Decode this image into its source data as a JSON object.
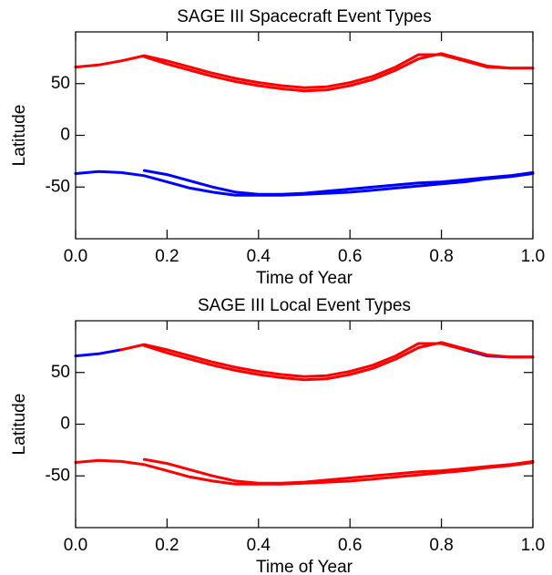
{
  "chart_data": [
    {
      "type": "line",
      "title": "SAGE III Spacecraft Event Types",
      "x_label": "Time of Year",
      "y_label": "Latitude",
      "x": [
        0,
        0.05,
        0.1,
        0.15,
        0.2,
        0.25,
        0.3,
        0.35,
        0.4,
        0.45,
        0.5,
        0.55,
        0.6,
        0.65,
        0.7,
        0.75,
        0.8,
        0.85,
        0.9,
        0.95,
        1.0
      ],
      "xlim": [
        0,
        1
      ],
      "ylim": [
        -100,
        100
      ],
      "xticks": [
        {
          "value": 0,
          "label": "0.0"
        },
        {
          "value": 0.2,
          "label": "0.2"
        },
        {
          "value": 0.4,
          "label": "0.4"
        },
        {
          "value": 0.6,
          "label": "0.6"
        },
        {
          "value": 0.8,
          "label": "0.8"
        },
        {
          "value": 1,
          "label": "1.0"
        }
      ],
      "yticks": [
        -50,
        0,
        50
      ],
      "series": [
        {
          "color": "#ff0000",
          "values": [
            66,
            68,
            72,
            77,
            72,
            66,
            60,
            55,
            51,
            48,
            46,
            47,
            51,
            57,
            66,
            78,
            78,
            72,
            66,
            65,
            65
          ]
        },
        {
          "color": "#ff0000",
          "values": [
            null,
            null,
            null,
            76,
            69,
            63,
            57,
            52,
            48,
            45,
            43,
            44,
            48,
            54,
            63,
            74,
            79,
            73,
            67,
            65,
            65
          ]
        },
        {
          "color": "#0000ff",
          "values": [
            -37,
            -35,
            -36,
            -39,
            -45,
            -51,
            -55,
            -58,
            -58,
            -58,
            -57,
            -56,
            -55,
            -53,
            -51,
            -49,
            -47,
            -45,
            -42,
            -40,
            -37
          ]
        },
        {
          "color": "#0000ff",
          "values": [
            null,
            null,
            null,
            -34,
            -38,
            -44,
            -50,
            -55,
            -57,
            -57,
            -56,
            -54,
            -52,
            -50,
            -48,
            -46,
            -45,
            -43,
            -41,
            -39,
            -36
          ]
        }
      ]
    },
    {
      "type": "line",
      "title": "SAGE III Local Event Types",
      "x_label": "Time of Year",
      "y_label": "Latitude",
      "x": [
        0,
        0.05,
        0.1,
        0.15,
        0.2,
        0.25,
        0.3,
        0.35,
        0.4,
        0.45,
        0.5,
        0.55,
        0.6,
        0.65,
        0.7,
        0.75,
        0.8,
        0.85,
        0.9,
        0.95,
        1.0
      ],
      "xlim": [
        0,
        1
      ],
      "ylim": [
        -100,
        100
      ],
      "xticks": [
        {
          "value": 0,
          "label": "0.0"
        },
        {
          "value": 0.2,
          "label": "0.2"
        },
        {
          "value": 0.4,
          "label": "0.4"
        },
        {
          "value": 0.6,
          "label": "0.6"
        },
        {
          "value": 0.8,
          "label": "0.8"
        },
        {
          "value": 1,
          "label": "1.0"
        }
      ],
      "yticks": [
        -50,
        0,
        50
      ],
      "series": [
        {
          "color": "#0000ff",
          "values": [
            66,
            68,
            72,
            null,
            null,
            null,
            null,
            null,
            null,
            null,
            null,
            null,
            null,
            null,
            null,
            null,
            null,
            72,
            66,
            65,
            65
          ]
        },
        {
          "color": "#ff0000",
          "values": [
            null,
            null,
            72,
            77,
            72,
            66,
            60,
            55,
            51,
            48,
            46,
            47,
            51,
            57,
            66,
            78,
            78,
            72,
            null,
            null,
            null
          ]
        },
        {
          "color": "#ff0000",
          "values": [
            null,
            null,
            null,
            76,
            69,
            63,
            57,
            52,
            48,
            45,
            43,
            44,
            48,
            54,
            63,
            74,
            79,
            73,
            67,
            65,
            65
          ]
        },
        {
          "color": "#ff0000",
          "values": [
            -37,
            -35,
            -36,
            -39,
            -45,
            -51,
            -55,
            -58,
            -58,
            -58,
            -57,
            -56,
            -55,
            -53,
            -51,
            -49,
            -47,
            -45,
            -42,
            -40,
            -37
          ]
        },
        {
          "color": "#ff0000",
          "values": [
            null,
            null,
            null,
            -34,
            -38,
            -44,
            -50,
            -55,
            -57,
            -57,
            -56,
            -54,
            -52,
            -50,
            -48,
            -46,
            -45,
            -43,
            -41,
            -39,
            -36
          ]
        }
      ]
    }
  ]
}
